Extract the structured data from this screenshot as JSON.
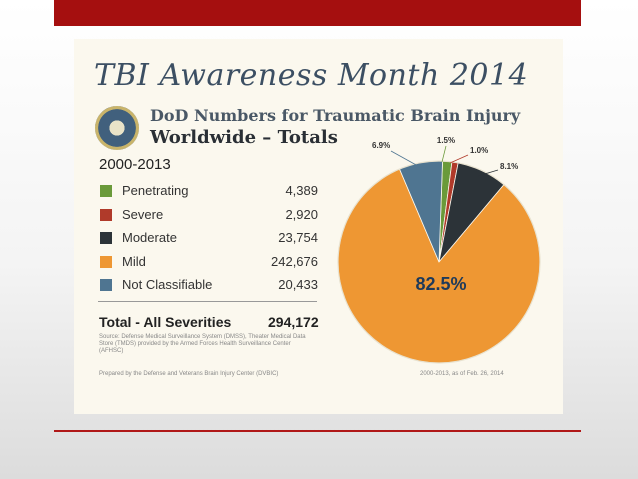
{
  "slide": {
    "title": "TBI Awareness Month 2014",
    "subtitle_line1": "DoD Numbers for Traumatic Brain Injury",
    "subtitle_line2": "Worldwide – Totals",
    "period": "2000-2013",
    "total_label": "Total - All Severities",
    "total_value": "294,172",
    "source_text": "Source: Defense Medical Surveillance System (DMSS), Theater Medical Data Store (TMDS) provided by the Armed Forces Health Surveillance Center (AFHSC)",
    "prepared_by": "Prepared by the Defense and Veterans Brain Injury Center (DVBIC)",
    "date_note": "2000-2013, as of Feb. 26, 2014"
  },
  "chart_data": {
    "type": "pie",
    "categories": [
      "Penetrating",
      "Severe",
      "Moderate",
      "Mild",
      "Not Classifiable"
    ],
    "values": [
      4389,
      2920,
      23754,
      242676,
      20433
    ],
    "value_labels": [
      "4,389",
      "2,920",
      "23,754",
      "242,676",
      "20,433"
    ],
    "percent_labels": [
      "1.5%",
      "1.0%",
      "8.1%",
      "82.5%",
      "6.9%"
    ],
    "colors": [
      "#6a9a3a",
      "#b03a2a",
      "#2c3338",
      "#ee9733",
      "#4f7591"
    ],
    "legend": "left"
  }
}
